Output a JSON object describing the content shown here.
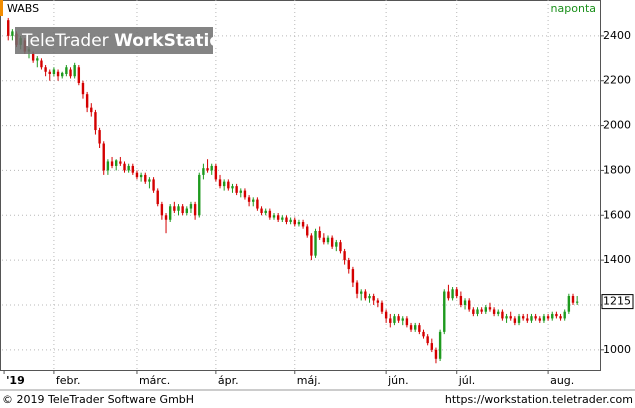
{
  "chart_data": {
    "type": "candlestick",
    "symbol": "WABS",
    "interval": "naponta",
    "watermark": [
      "TeleTrader",
      "WorkStation"
    ],
    "footer_left": "© 2019 TeleTrader Software GmbH",
    "footer_right": "https://workstation.teletrader.com",
    "up_color": "#1e9a1e",
    "down_color": "#d40000",
    "grid": true,
    "ylim": [
      910,
      2560
    ],
    "yticks": [
      1000,
      1200,
      1400,
      1600,
      1800,
      2000,
      2200,
      2400
    ],
    "xlim": [
      -1.5,
      142.5
    ],
    "xticks": [
      {
        "value": -1,
        "label": "'19"
      },
      {
        "value": 11,
        "label": "febr."
      },
      {
        "value": 31,
        "label": "márc."
      },
      {
        "value": 50,
        "label": "ápr."
      },
      {
        "value": 69,
        "label": "máj."
      },
      {
        "value": 91,
        "label": "jún."
      },
      {
        "value": 108,
        "label": "júl."
      },
      {
        "value": 130,
        "label": "aug."
      }
    ],
    "last_value": 1215,
    "ohlc": [
      [
        2470,
        2480,
        2380,
        2400
      ],
      [
        2400,
        2430,
        2380,
        2420
      ],
      [
        2410,
        2420,
        2350,
        2360
      ],
      [
        2360,
        2400,
        2340,
        2390
      ],
      [
        2380,
        2390,
        2320,
        2330
      ],
      [
        2330,
        2350,
        2300,
        2340
      ],
      [
        2320,
        2330,
        2280,
        2290
      ],
      [
        2290,
        2310,
        2260,
        2300
      ],
      [
        2290,
        2300,
        2250,
        2260
      ],
      [
        2260,
        2270,
        2220,
        2240
      ],
      [
        2240,
        2250,
        2200,
        2230
      ],
      [
        2230,
        2260,
        2220,
        2250
      ],
      [
        2240,
        2250,
        2200,
        2220
      ],
      [
        2220,
        2240,
        2210,
        2235
      ],
      [
        2230,
        2270,
        2220,
        2260
      ],
      [
        2250,
        2260,
        2210,
        2220
      ],
      [
        2220,
        2280,
        2210,
        2270
      ],
      [
        2260,
        2270,
        2180,
        2190
      ],
      [
        2190,
        2200,
        2120,
        2140
      ],
      [
        2140,
        2150,
        2060,
        2080
      ],
      [
        2080,
        2100,
        2040,
        2060
      ],
      [
        2060,
        2070,
        1960,
        1980
      ],
      [
        1980,
        1990,
        1900,
        1920
      ],
      [
        1920,
        1930,
        1780,
        1800
      ],
      [
        1800,
        1850,
        1780,
        1840
      ],
      [
        1840,
        1860,
        1810,
        1820
      ],
      [
        1820,
        1850,
        1800,
        1845
      ],
      [
        1840,
        1860,
        1820,
        1830
      ],
      [
        1830,
        1840,
        1790,
        1800
      ],
      [
        1800,
        1830,
        1790,
        1820
      ],
      [
        1820,
        1830,
        1780,
        1790
      ],
      [
        1790,
        1800,
        1760,
        1770
      ],
      [
        1770,
        1790,
        1750,
        1780
      ],
      [
        1780,
        1790,
        1740,
        1750
      ],
      [
        1750,
        1770,
        1720,
        1760
      ],
      [
        1760,
        1770,
        1700,
        1710
      ],
      [
        1710,
        1720,
        1640,
        1650
      ],
      [
        1650,
        1660,
        1580,
        1600
      ],
      [
        1600,
        1610,
        1520,
        1580
      ],
      [
        1580,
        1650,
        1570,
        1640
      ],
      [
        1640,
        1660,
        1610,
        1620
      ],
      [
        1620,
        1650,
        1600,
        1640
      ],
      [
        1640,
        1650,
        1600,
        1610
      ],
      [
        1610,
        1640,
        1600,
        1630
      ],
      [
        1630,
        1660,
        1610,
        1650
      ],
      [
        1650,
        1660,
        1580,
        1600
      ],
      [
        1600,
        1790,
        1590,
        1780
      ],
      [
        1780,
        1830,
        1760,
        1810
      ],
      [
        1810,
        1850,
        1790,
        1800
      ],
      [
        1800,
        1830,
        1780,
        1820
      ],
      [
        1820,
        1830,
        1750,
        1760
      ],
      [
        1760,
        1780,
        1720,
        1730
      ],
      [
        1730,
        1760,
        1710,
        1750
      ],
      [
        1750,
        1760,
        1710,
        1720
      ],
      [
        1720,
        1740,
        1700,
        1730
      ],
      [
        1730,
        1740,
        1690,
        1700
      ],
      [
        1700,
        1720,
        1680,
        1710
      ],
      [
        1710,
        1720,
        1670,
        1680
      ],
      [
        1680,
        1690,
        1640,
        1660
      ],
      [
        1660,
        1680,
        1640,
        1670
      ],
      [
        1670,
        1680,
        1620,
        1630
      ],
      [
        1630,
        1640,
        1600,
        1610
      ],
      [
        1610,
        1630,
        1600,
        1620
      ],
      [
        1620,
        1630,
        1580,
        1590
      ],
      [
        1590,
        1610,
        1580,
        1600
      ],
      [
        1600,
        1610,
        1570,
        1580
      ],
      [
        1580,
        1600,
        1570,
        1590
      ],
      [
        1590,
        1600,
        1560,
        1570
      ],
      [
        1570,
        1590,
        1560,
        1580
      ],
      [
        1580,
        1590,
        1550,
        1560
      ],
      [
        1560,
        1580,
        1550,
        1570
      ],
      [
        1570,
        1580,
        1540,
        1550
      ],
      [
        1550,
        1560,
        1500,
        1510
      ],
      [
        1510,
        1520,
        1400,
        1420
      ],
      [
        1420,
        1540,
        1410,
        1530
      ],
      [
        1530,
        1550,
        1490,
        1500
      ],
      [
        1500,
        1520,
        1470,
        1480
      ],
      [
        1480,
        1510,
        1470,
        1500
      ],
      [
        1500,
        1510,
        1450,
        1460
      ],
      [
        1460,
        1490,
        1440,
        1480
      ],
      [
        1480,
        1490,
        1430,
        1440
      ],
      [
        1440,
        1450,
        1380,
        1400
      ],
      [
        1400,
        1410,
        1340,
        1360
      ],
      [
        1360,
        1370,
        1280,
        1300
      ],
      [
        1300,
        1310,
        1230,
        1250
      ],
      [
        1250,
        1270,
        1220,
        1260
      ],
      [
        1260,
        1270,
        1220,
        1230
      ],
      [
        1230,
        1250,
        1210,
        1240
      ],
      [
        1240,
        1250,
        1200,
        1220
      ],
      [
        1220,
        1230,
        1190,
        1210
      ],
      [
        1210,
        1220,
        1160,
        1170
      ],
      [
        1170,
        1180,
        1120,
        1140
      ],
      [
        1140,
        1160,
        1100,
        1120
      ],
      [
        1120,
        1160,
        1110,
        1150
      ],
      [
        1150,
        1160,
        1120,
        1130
      ],
      [
        1130,
        1150,
        1110,
        1140
      ],
      [
        1140,
        1150,
        1100,
        1110
      ],
      [
        1110,
        1120,
        1080,
        1090
      ],
      [
        1090,
        1120,
        1080,
        1110
      ],
      [
        1110,
        1120,
        1070,
        1080
      ],
      [
        1080,
        1090,
        1050,
        1060
      ],
      [
        1060,
        1070,
        1020,
        1030
      ],
      [
        1030,
        1050,
        990,
        1000
      ],
      [
        1000,
        1010,
        940,
        960
      ],
      [
        960,
        1090,
        950,
        1080
      ],
      [
        1080,
        1270,
        1070,
        1260
      ],
      [
        1260,
        1290,
        1220,
        1230
      ],
      [
        1230,
        1280,
        1220,
        1270
      ],
      [
        1270,
        1280,
        1230,
        1240
      ],
      [
        1240,
        1260,
        1190,
        1200
      ],
      [
        1200,
        1230,
        1180,
        1220
      ],
      [
        1220,
        1230,
        1170,
        1180
      ],
      [
        1180,
        1190,
        1150,
        1160
      ],
      [
        1160,
        1190,
        1150,
        1180
      ],
      [
        1180,
        1190,
        1160,
        1170
      ],
      [
        1170,
        1200,
        1160,
        1190
      ],
      [
        1190,
        1210,
        1170,
        1180
      ],
      [
        1180,
        1190,
        1150,
        1160
      ],
      [
        1160,
        1180,
        1150,
        1170
      ],
      [
        1170,
        1180,
        1130,
        1140
      ],
      [
        1140,
        1160,
        1120,
        1150
      ],
      [
        1150,
        1170,
        1130,
        1140
      ],
      [
        1140,
        1150,
        1110,
        1120
      ],
      [
        1120,
        1160,
        1110,
        1150
      ],
      [
        1150,
        1160,
        1130,
        1140
      ],
      [
        1140,
        1160,
        1120,
        1130
      ],
      [
        1130,
        1160,
        1120,
        1150
      ],
      [
        1150,
        1160,
        1130,
        1140
      ],
      [
        1140,
        1150,
        1120,
        1130
      ],
      [
        1130,
        1160,
        1120,
        1150
      ],
      [
        1150,
        1160,
        1130,
        1140
      ],
      [
        1140,
        1170,
        1130,
        1160
      ],
      [
        1160,
        1170,
        1140,
        1150
      ],
      [
        1150,
        1160,
        1130,
        1140
      ],
      [
        1140,
        1180,
        1130,
        1170
      ],
      [
        1170,
        1250,
        1160,
        1240
      ],
      [
        1240,
        1250,
        1200,
        1210
      ],
      [
        1210,
        1240,
        1200,
        1215
      ]
    ]
  }
}
